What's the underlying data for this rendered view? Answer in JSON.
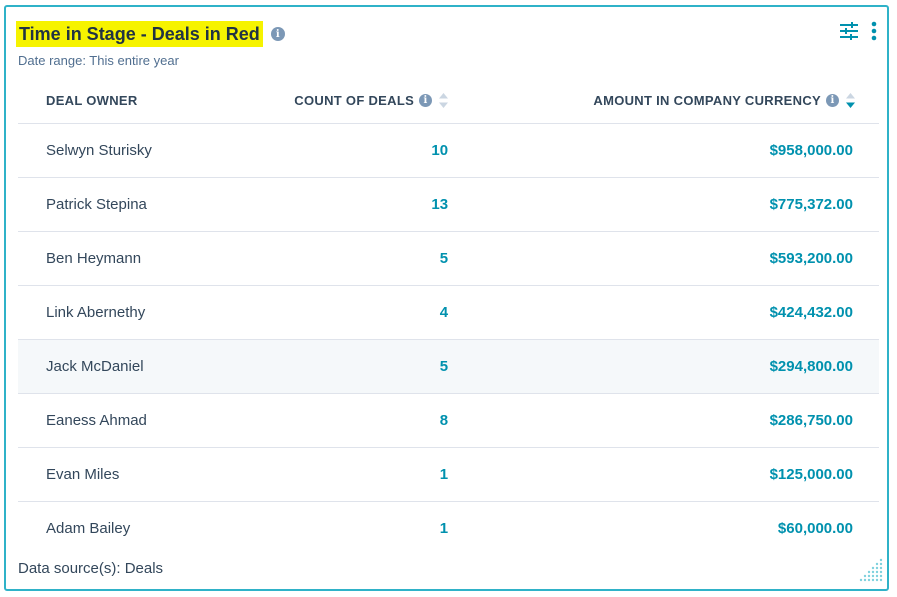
{
  "report": {
    "title": "Time in Stage - Deals in Red",
    "subtitle": "Date range: This entire year",
    "footer": "Data source(s): Deals"
  },
  "toolbar": {
    "icons": [
      "filter-sliders-icon",
      "more-vertical-icon"
    ]
  },
  "table": {
    "columns": [
      "DEAL OWNER",
      "COUNT OF DEALS",
      "AMOUNT IN COMPANY CURRENCY"
    ],
    "active_sort_column": "AMOUNT IN COMPANY CURRENCY",
    "sort_direction": "descending",
    "rows": [
      {
        "owner": "Selwyn Sturisky",
        "count": "10",
        "amount": "$958,000.00"
      },
      {
        "owner": "Patrick Stepina",
        "count": "13",
        "amount": "$775,372.00"
      },
      {
        "owner": "Ben Heymann",
        "count": "5",
        "amount": "$593,200.00"
      },
      {
        "owner": "Link Abernethy",
        "count": "4",
        "amount": "$424,432.00"
      },
      {
        "owner": "Jack McDaniel",
        "count": "5",
        "amount": "$294,800.00"
      },
      {
        "owner": "Eaness Ahmad",
        "count": "8",
        "amount": "$286,750.00"
      },
      {
        "owner": "Evan Miles",
        "count": "1",
        "amount": "$125,000.00"
      },
      {
        "owner": "Adam Bailey",
        "count": "1",
        "amount": "$60,000.00"
      }
    ]
  },
  "colors": {
    "highlight": "#f6f300",
    "accent": "#0091ae",
    "card_border": "#2fb2c8",
    "text": "#33475b",
    "hover_row": "#f5f8fa"
  }
}
